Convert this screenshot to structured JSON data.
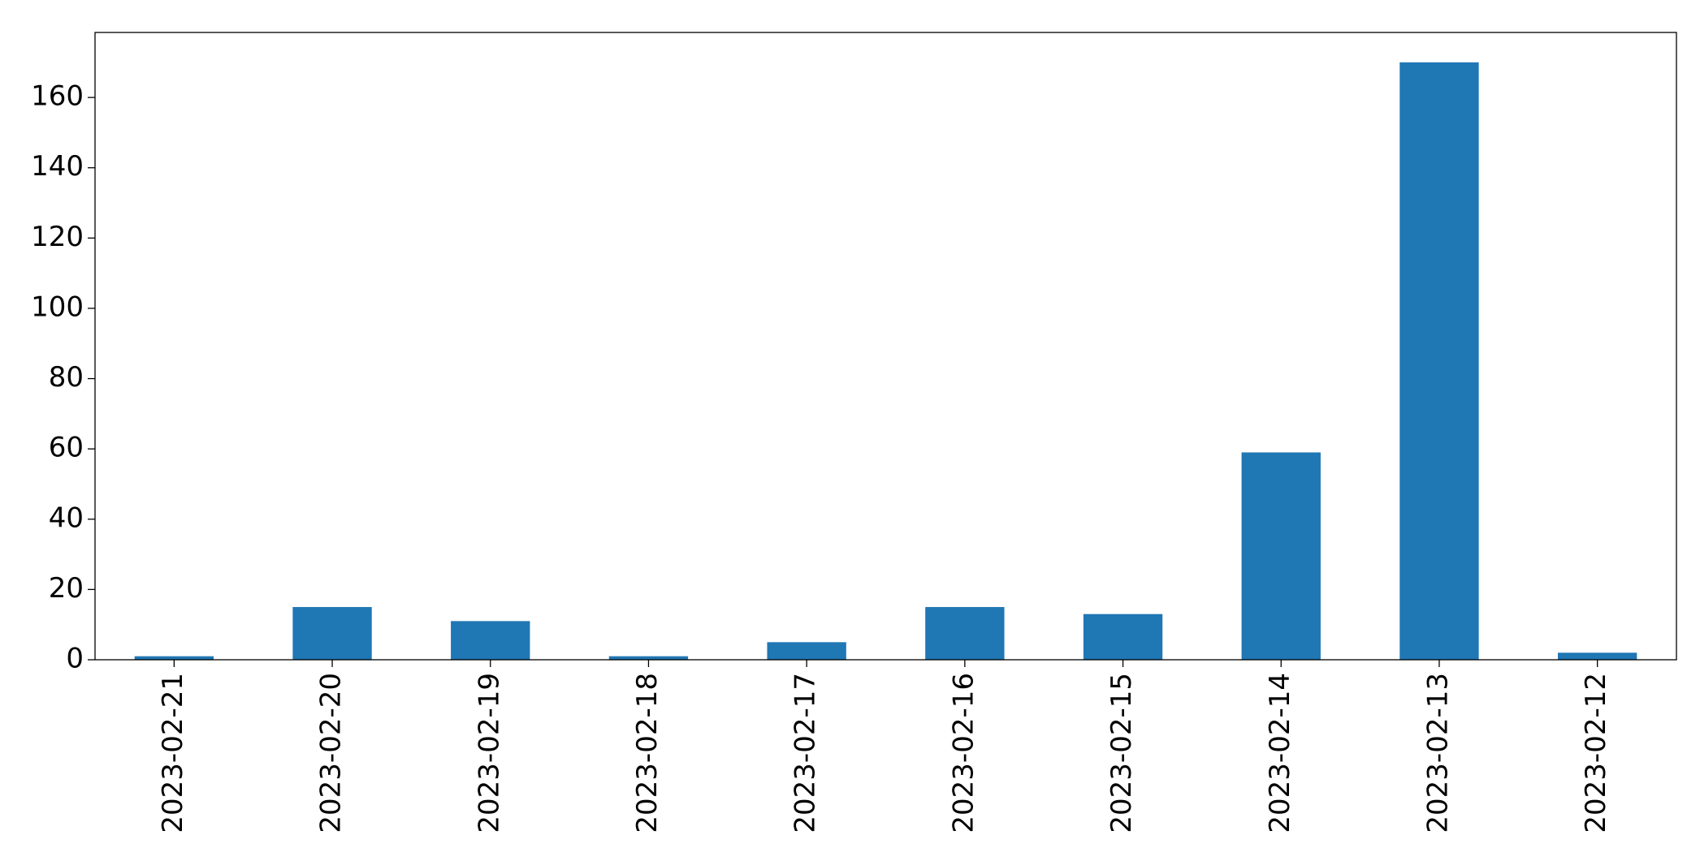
{
  "chart_data": {
    "type": "bar",
    "categories": [
      "2023-02-21",
      "2023-02-20",
      "2023-02-19",
      "2023-02-18",
      "2023-02-17",
      "2023-02-16",
      "2023-02-15",
      "2023-02-14",
      "2023-02-13",
      "2023-02-12"
    ],
    "values": [
      1,
      15,
      11,
      1,
      5,
      15,
      13,
      59,
      170,
      2
    ],
    "color": "#1f77b4",
    "ylim": [
      0,
      178.5
    ],
    "yticks": [
      0,
      20,
      40,
      60,
      80,
      100,
      120,
      140,
      160
    ],
    "grid": false
  }
}
